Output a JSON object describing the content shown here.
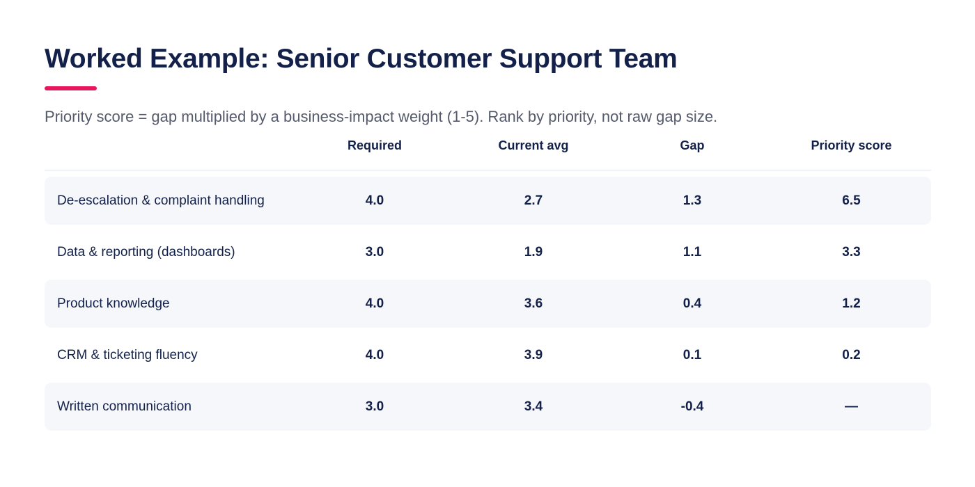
{
  "page": {
    "title": "Worked Example: Senior Customer Support Team",
    "accent_color": "#e8175d",
    "subtitle": "Priority score = gap multiplied by a business-impact weight (1-5). Rank by priority, not raw gap size."
  },
  "table": {
    "headers": [
      "",
      "Required",
      "Current avg",
      "Gap",
      "Priority score"
    ],
    "rows": [
      {
        "skill": "De-escalation & complaint handling",
        "required": "4.0",
        "current": "2.7",
        "gap": "1.3",
        "priority": "6.5"
      },
      {
        "skill": "Data & reporting (dashboards)",
        "required": "3.0",
        "current": "1.9",
        "gap": "1.1",
        "priority": "3.3"
      },
      {
        "skill": "Product knowledge",
        "required": "4.0",
        "current": "3.6",
        "gap": "0.4",
        "priority": "1.2"
      },
      {
        "skill": "CRM & ticketing fluency",
        "required": "4.0",
        "current": "3.9",
        "gap": "0.1",
        "priority": "0.2"
      },
      {
        "skill": "Written communication",
        "required": "3.0",
        "current": "3.4",
        "gap": "-0.4",
        "priority": "—"
      }
    ]
  }
}
